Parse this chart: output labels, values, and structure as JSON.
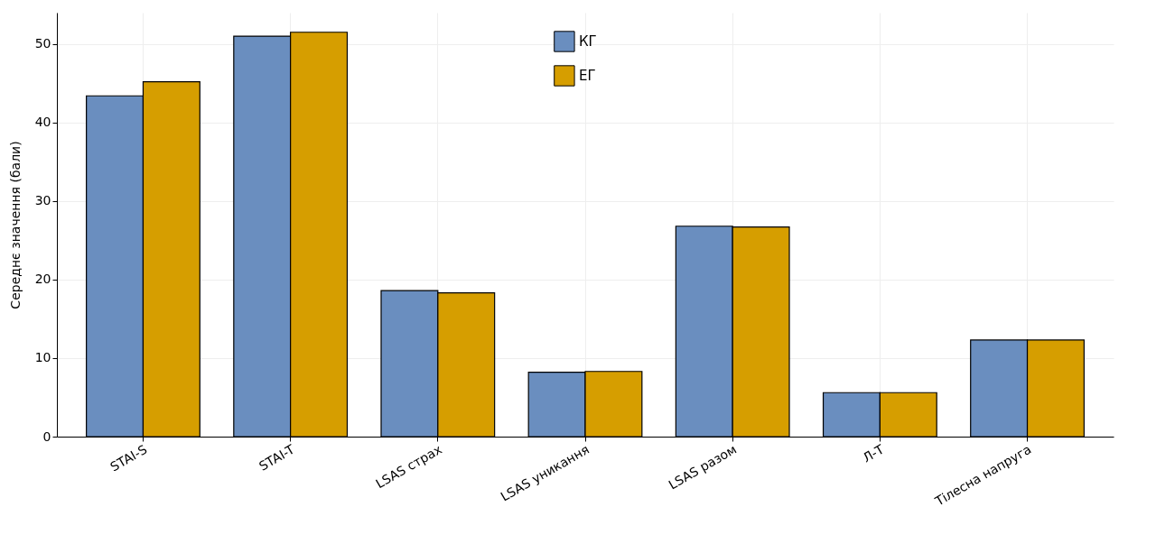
{
  "chart_data": {
    "type": "bar",
    "ylabel": "Середнє значення (бали)",
    "categories": [
      "STAI-S",
      "STAI-T",
      "LSAS страх",
      "LSAS уникання",
      "LSAS разом",
      "Л-Т",
      "Тілесна напруга"
    ],
    "series": [
      {
        "name": "КГ",
        "color": "#6a8ebf",
        "values": [
          43.4,
          51.0,
          18.6,
          8.2,
          26.8,
          5.6,
          12.3
        ]
      },
      {
        "name": "ЕГ",
        "color": "#d69e00",
        "values": [
          45.2,
          51.5,
          18.3,
          8.3,
          26.7,
          5.6,
          12.3
        ]
      }
    ],
    "ylim": [
      0,
      54
    ],
    "yticks": [
      0,
      10,
      20,
      30,
      40,
      50
    ],
    "grid": true,
    "legend": "top"
  }
}
